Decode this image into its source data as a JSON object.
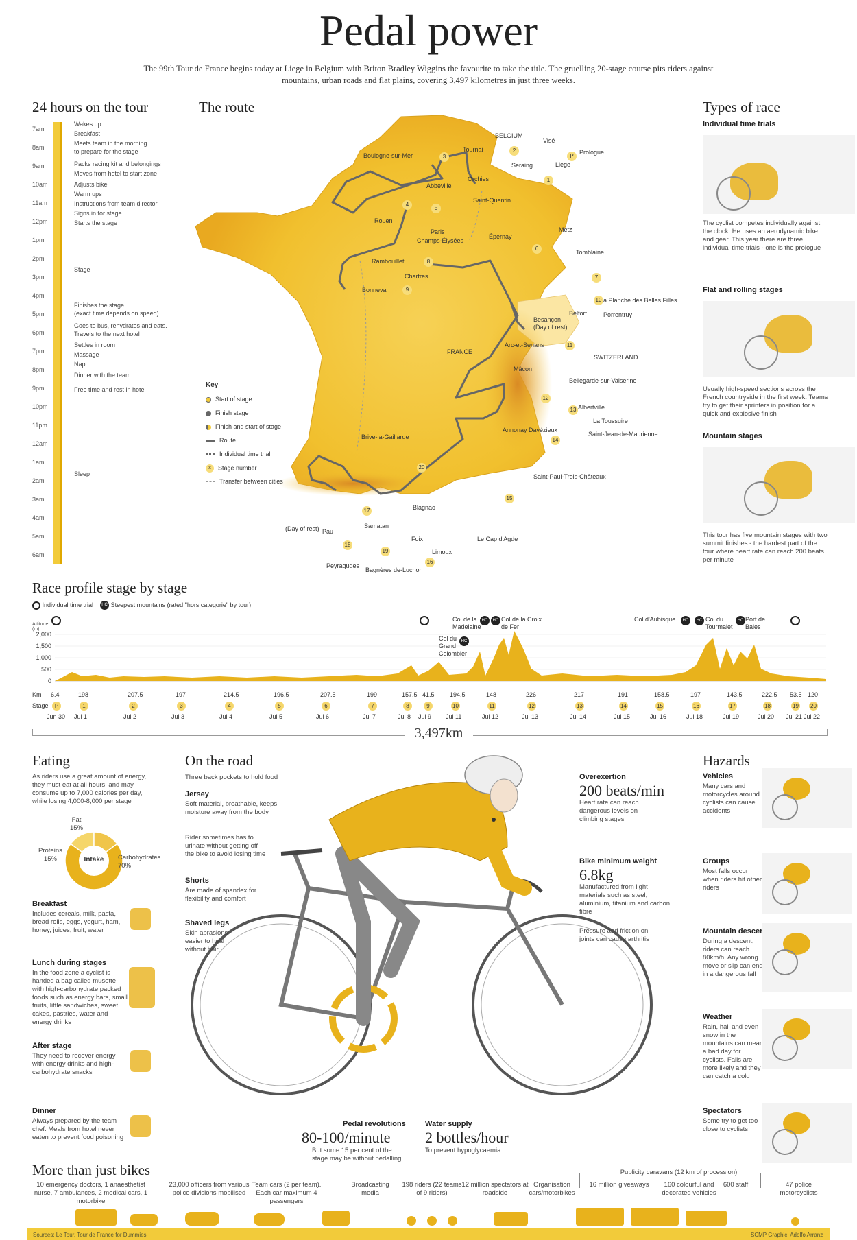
{
  "title": "Pedal power",
  "intro": "The 99th Tour de France begins today at Liege in Belgium with Briton Bradley Wiggins the favourite to take the title. The gruelling 20-stage course pits riders against mountains, urban roads and flat plains, covering 3,497 kilometres in just three weeks.",
  "colors": {
    "accent": "#e8b21c",
    "accent_light": "#f5d66a",
    "map_fill": "#f4c93c",
    "dark": "#333333"
  },
  "timeline": {
    "heading": "24 hours on the tour",
    "hours": [
      "7am",
      "8am",
      "9am",
      "10am",
      "11am",
      "12pm",
      "1pm",
      "2pm",
      "3pm",
      "4pm",
      "5pm",
      "6pm",
      "7pm",
      "8pm",
      "9pm",
      "10pm",
      "11pm",
      "12am",
      "1am",
      "2am",
      "3am",
      "4am",
      "5am",
      "6am"
    ],
    "activities": [
      "Wakes up",
      "Breakfast",
      "Meets team in the morning",
      "to prepare for the stage",
      "Packs racing kit and belongings",
      "Moves from hotel to start zone",
      "Adjusts bike",
      "Warm ups",
      "Instructions from team director",
      "Signs in for stage",
      "Starts the stage",
      "Stage",
      "Finishes the stage",
      "(exact time depends on speed)",
      "Goes to bus, rehydrates and eats.",
      "Travels to the next hotel",
      "Settles in room",
      "Massage",
      "Nap",
      "Dinner with the team",
      "Free time and rest in hotel",
      "Sleep"
    ]
  },
  "route": {
    "heading": "The route",
    "places": [
      "BELGIUM",
      "Visé",
      "Prologue",
      "Liege",
      "Seraing",
      "Tournai",
      "Boulogne-sur-Mer",
      "Orchies",
      "Abbeville",
      "Saint-Quentin",
      "Rouen",
      "Paris",
      "Champs-Élysées",
      "Épernay",
      "Metz",
      "Tomblaine",
      "Rambouillet",
      "Chartres",
      "Bonneval",
      "La Planche des Belles Filles",
      "Belfort",
      "Porrentruy",
      "Besançon",
      "(Day of rest)",
      "Arc-et-Senans",
      "FRANCE",
      "SWITZERLAND",
      "Mâcon",
      "Bellegarde-sur-Valserine",
      "Albertville",
      "La Toussuire",
      "Saint-Jean-de-Maurienne",
      "Annonay Davézieux",
      "Brive-la-Gaillarde",
      "Saint-Paul-Trois-Châteaux",
      "Blagnac",
      "Samatan",
      "(Day of rest)",
      "Pau",
      "Foix",
      "Limoux",
      "Le Cap d'Agde",
      "Peyragudes",
      "Bagnères de-Luchon"
    ],
    "stage_numbers": [
      "P",
      "1",
      "2",
      "3",
      "4",
      "5",
      "6",
      "7",
      "8",
      "9",
      "10",
      "11",
      "12",
      "13",
      "14",
      "15",
      "16",
      "17",
      "18",
      "19",
      "20"
    ],
    "key": {
      "title": "Key",
      "items": [
        "Start of stage",
        "Finish stage",
        "Finish and start of stage",
        "Route",
        "Individual time trial",
        "Stage number",
        "Transfer between cities"
      ],
      "stage_marker": "x"
    }
  },
  "race_types": {
    "heading": "Types of race",
    "items": [
      {
        "title": "Individual time trials",
        "text": "The cyclist competes individually against the clock. He uses an aerodynamic bike and gear. This year there are three individual time trials - one is the prologue"
      },
      {
        "title": "Flat and rolling stages",
        "text": "Usually high-speed sections across the French countryside in the first week. Teams try to get their sprinters in position for a quick and explosive finish"
      },
      {
        "title": "Mountain stages",
        "text": "This tour has five mountain stages with two summit finishes - the hardest part of the tour where heart rate can reach 200 beats per minute"
      }
    ]
  },
  "profile": {
    "heading": "Race profile stage by stage",
    "legend_tt": "Individual time trial",
    "legend_hc": "Steepest mountains (rated \"hors categorie\" by tour)",
    "hc_badge": "HC",
    "axis_label": "Altitude (m)",
    "y_ticks": [
      "2,000",
      "1,500",
      "1,000",
      "500",
      "0"
    ],
    "km_label": "Km",
    "stage_label": "Stage",
    "km": [
      "6.4",
      "198",
      "207.5",
      "197",
      "214.5",
      "196.5",
      "207.5",
      "199",
      "157.5",
      "41.5",
      "194.5",
      "148",
      "226",
      "217",
      "191",
      "158.5",
      "197",
      "143.5",
      "222.5",
      "53.5",
      "120"
    ],
    "stages": [
      "P",
      "1",
      "2",
      "3",
      "4",
      "5",
      "6",
      "7",
      "8",
      "9",
      "10",
      "11",
      "12",
      "13",
      "14",
      "15",
      "16",
      "17",
      "18",
      "19",
      "20"
    ],
    "dates": [
      "Jun 30",
      "Jul 1",
      "Jul 2",
      "Jul 3",
      "Jul 4",
      "Jul 5",
      "Jul 6",
      "Jul 7",
      "Jul 8",
      "Jul 9",
      "Jul 11",
      "Jul 12",
      "Jul 13",
      "Jul 14",
      "Jul 15",
      "Jul 16",
      "Jul 18",
      "Jul 19",
      "Jul 20",
      "Jul 21",
      "Jul 22"
    ],
    "mountains": [
      "Col de la Madelaine",
      "Col de la Croix de Fer",
      "Col du Grand Colombier",
      "Col d'Aubisque",
      "Col du Tourmalet",
      "Port de Bales"
    ],
    "total": "3,497km"
  },
  "eating": {
    "heading": "Eating",
    "intro": "As riders use a great amount of energy, they must eat at all hours, and may consume up to 7,000 calories per day, while losing 4,000-8,000 per stage",
    "donut_center": "Intake",
    "donut": [
      {
        "label": "Carbohydrates",
        "pct": "70%",
        "value": 70
      },
      {
        "label": "Proteins",
        "pct": "15%",
        "value": 15
      },
      {
        "label": "Fat",
        "pct": "15%",
        "value": 15
      }
    ],
    "meals": [
      {
        "title": "Breakfast",
        "text": "Includes cereals, milk, pasta, bread rolls, eggs, yogurt, ham, honey, juices, fruit, water"
      },
      {
        "title": "Lunch during stages",
        "text": "In the food zone a cyclist is handed a bag called musette with high-carbohydrate packed foods such as energy bars, small fruits, little sandwiches, sweet cakes, pastries, water and energy drinks"
      },
      {
        "title": "After stage",
        "text": "They need to recover energy with energy drinks and high-carbohydrate snacks"
      },
      {
        "title": "Dinner",
        "text": "Always prepared by the team chef. Meals from hotel never eaten to prevent food poisoning"
      }
    ]
  },
  "road": {
    "heading": "On the road",
    "notes": {
      "pockets": "Three back pockets to hold food",
      "jersey_title": "Jersey",
      "jersey": "Soft material, breathable, keeps moisture away from the body",
      "urinate": "Rider sometimes has to urinate without getting off the bike to avoid losing time",
      "shorts_title": "Shorts",
      "shorts": "Are made of spandex for flexibility and comfort",
      "legs_title": "Shaved legs",
      "legs": "Skin abrasions easier to heal without hair",
      "over_title": "Overexertion",
      "over_stat": "200 beats/min",
      "over": "Heart rate can reach dangerous levels on climbing stages",
      "weight_title": "Bike minimum weight",
      "weight_stat": "6.8kg",
      "weight": "Manufactured from light materials such as steel, aluminium, titanium and carbon fibre",
      "joints": "Pressure and friction on joints can cause arthritis",
      "pedal_title": "Pedal revolutions",
      "pedal_stat": "80-100/minute",
      "pedal": "But some 15 per cent of the stage may be without pedalling",
      "water_title": "Water supply",
      "water_stat": "2 bottles/hour",
      "water": "To prevent hypoglycaemia"
    }
  },
  "hazards": {
    "heading": "Hazards",
    "items": [
      {
        "title": "Vehicles",
        "text": "Many cars and motorcycles around cyclists can cause accidents"
      },
      {
        "title": "Groups",
        "text": "Most falls occur when riders hit other riders"
      },
      {
        "title": "Mountain descents",
        "text": "During a descent, riders can reach 80km/h. Any wrong move or slip can end in a dangerous fall"
      },
      {
        "title": "Weather",
        "text": "Rain, hail and even snow in the mountains can mean a bad day for cyclists. Falls are more likely and they can catch a cold"
      },
      {
        "title": "Spectators",
        "text": "Some try to get too close to cyclists"
      }
    ]
  },
  "bikes": {
    "heading": "More than just bikes",
    "caravan": "Publicity caravans (12 km of procession)",
    "items": [
      "10 emergency doctors, 1 anaesthetist nurse, 7 ambulances, 2 medical cars, 1 motorbike",
      "23,000 officers from various police divisions mobilised",
      "Team cars (2 per team). Each car maximum 4 passengers",
      "Broadcasting media",
      "198 riders (22 teams of 9 riders)",
      "12 million spectators at roadside",
      "Organisation cars/motorbikes",
      "16 million giveaways",
      "160 colourful and decorated vehicles",
      "600 staff",
      "47 police motorcyclists"
    ]
  },
  "footer": {
    "sources": "Sources: Le Tour, Tour de France for Dummies",
    "credit": "SCMP Graphic: Adolfo Arranz"
  }
}
